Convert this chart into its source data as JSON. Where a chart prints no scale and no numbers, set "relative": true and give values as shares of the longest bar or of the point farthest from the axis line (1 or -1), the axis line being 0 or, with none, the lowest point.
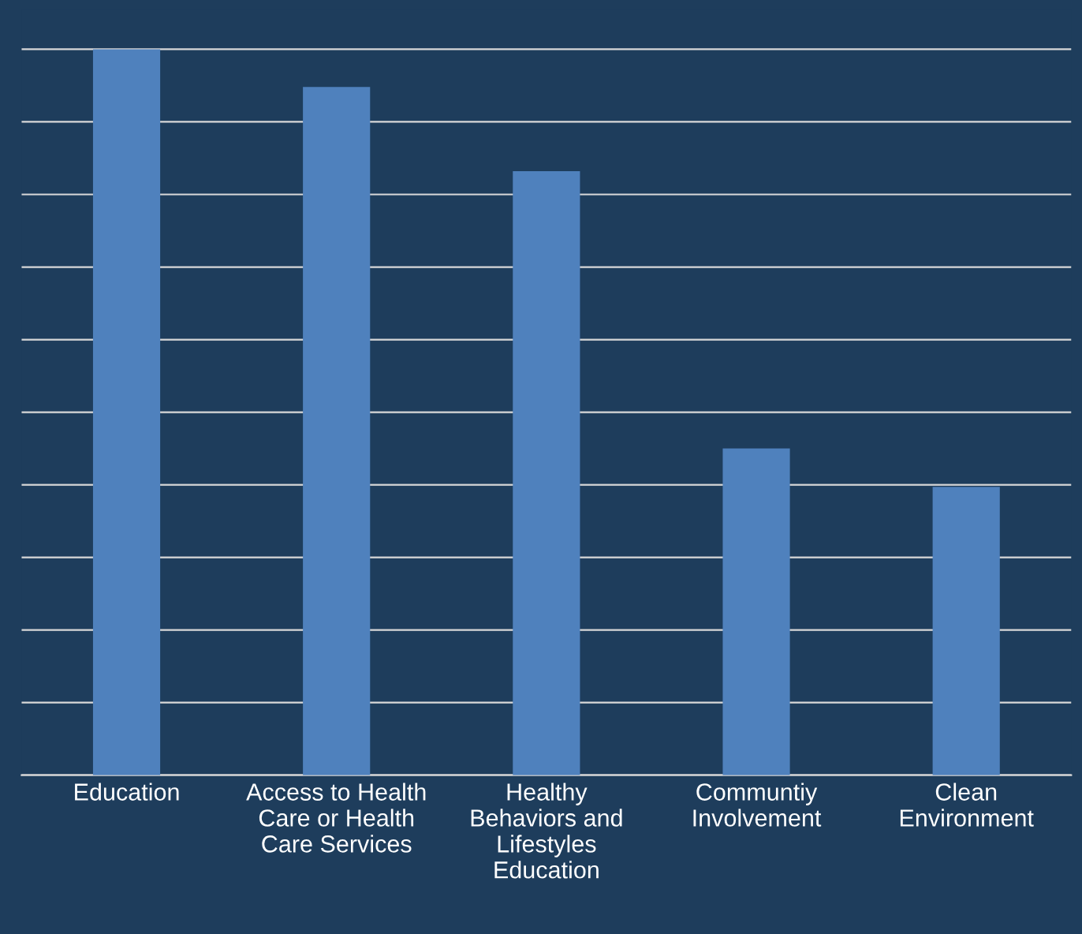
{
  "chart_data": {
    "type": "bar",
    "relative": true,
    "categories": [
      "Education",
      "Access to Health\nCare or Health\nCare Services",
      "Healthy\nBehaviors and\nLifestyles\nEducation",
      "Communtiy\nInvolvement",
      "Clean\nEnvironment"
    ],
    "values": [
      1,
      0.948,
      0.832,
      0.45,
      0.397
    ],
    "color": "#4f81bd",
    "grid": "y",
    "tick_labels": "x"
  }
}
